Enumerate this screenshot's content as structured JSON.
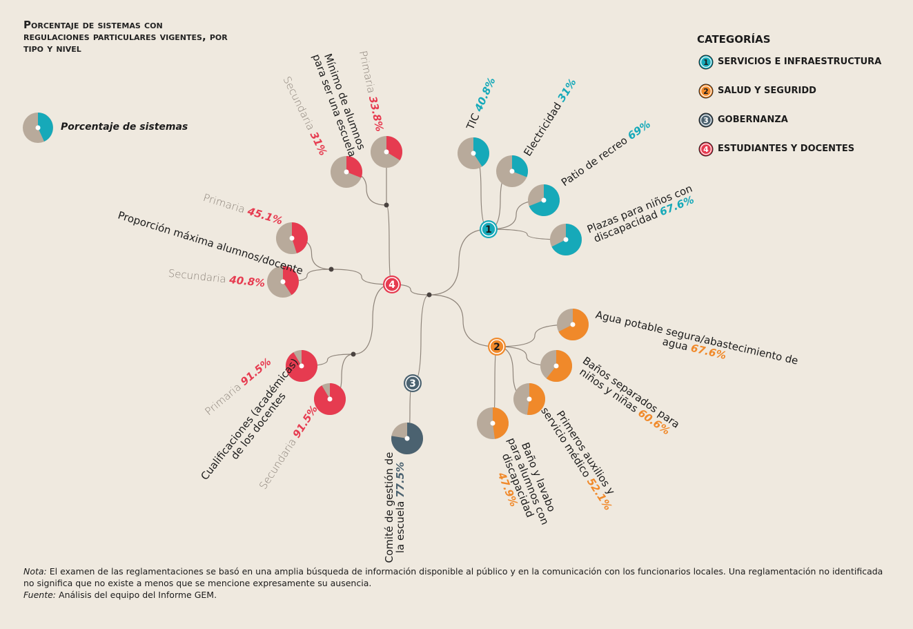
{
  "chart_data": {
    "type": "pie",
    "title": "Porcentaje de sistemas con regulaciones particulares vigentes, por tipo y nivel",
    "legend_title": "CATEGORÍAS",
    "pie_legend": "Porcentaje de sistemas",
    "categories": [
      {
        "number": "1",
        "name": "SERVICIOS E INFRAESTRUCTURA",
        "color": "#16a9b9",
        "items": [
          {
            "name": "TIC",
            "values": [
              40.8
            ],
            "value_labels": [
              "40.8%"
            ]
          },
          {
            "name": "Electricidad",
            "values": [
              31
            ],
            "value_labels": [
              "31%"
            ]
          },
          {
            "name": "Patio de recreo",
            "values": [
              69
            ],
            "value_labels": [
              "69%"
            ]
          },
          {
            "name": "Plazas para niños con discapacidad",
            "values": [
              67.6
            ],
            "value_labels": [
              "67.6%"
            ]
          }
        ]
      },
      {
        "number": "2",
        "name": "SALUD Y SEGURIDD",
        "color": "#f0892a",
        "items": [
          {
            "name": "Agua potable segura/abastecimiento de agua",
            "values": [
              67.6
            ],
            "value_labels": [
              "67.6%"
            ]
          },
          {
            "name": "Baños separados para niños y niñas",
            "values": [
              60.6
            ],
            "value_labels": [
              "60.6%"
            ]
          },
          {
            "name": "Primeros auxilios y servicio médico",
            "values": [
              52.1
            ],
            "value_labels": [
              "52.1%"
            ]
          },
          {
            "name": "Baño y lavabo para alumnos con discapacidad",
            "values": [
              47.9
            ],
            "value_labels": [
              "47.9%"
            ]
          }
        ]
      },
      {
        "number": "3",
        "name": "GOBERNANZA",
        "color": "#4b6270",
        "items": [
          {
            "name": "Comité de gestión de la escuela",
            "values": [
              77.5
            ],
            "value_labels": [
              "77.5%"
            ]
          }
        ]
      },
      {
        "number": "4",
        "name": "ESTUDIANTES Y DOCENTES",
        "color": "#e63b50",
        "items": [
          {
            "name": "Proporción máxima alumnos/docente",
            "levels": [
              "Primaria",
              "Secundaria"
            ],
            "values": [
              45.1,
              40.8
            ],
            "value_labels": [
              "45.1%",
              "40.8%"
            ]
          },
          {
            "name": "Mínimo de alumnos para ser una escuela",
            "levels": [
              "Primaria",
              "Secundaria"
            ],
            "values": [
              33.8,
              31
            ],
            "value_labels": [
              "33.8%",
              "31%"
            ]
          },
          {
            "name": "Cualificaciones (académicas) de los docentes",
            "levels": [
              "Primaria",
              "Secundaria"
            ],
            "values": [
              91.5,
              91.5
            ],
            "value_labels": [
              "91.5%",
              "91.5%"
            ]
          }
        ]
      }
    ],
    "note": {
      "label": "Nota:",
      "text": "El examen de las reglamentaciones se basó en una amplia búsqueda de información disponible al público y en la comunicación con los funcionarios locales. Una reglamentación no identificada no significa que no existe a menos que se mencione expresamente su ausencia."
    },
    "source": {
      "label": "Fuente:",
      "text": "Análisis del equipo del Informe GEM."
    }
  }
}
